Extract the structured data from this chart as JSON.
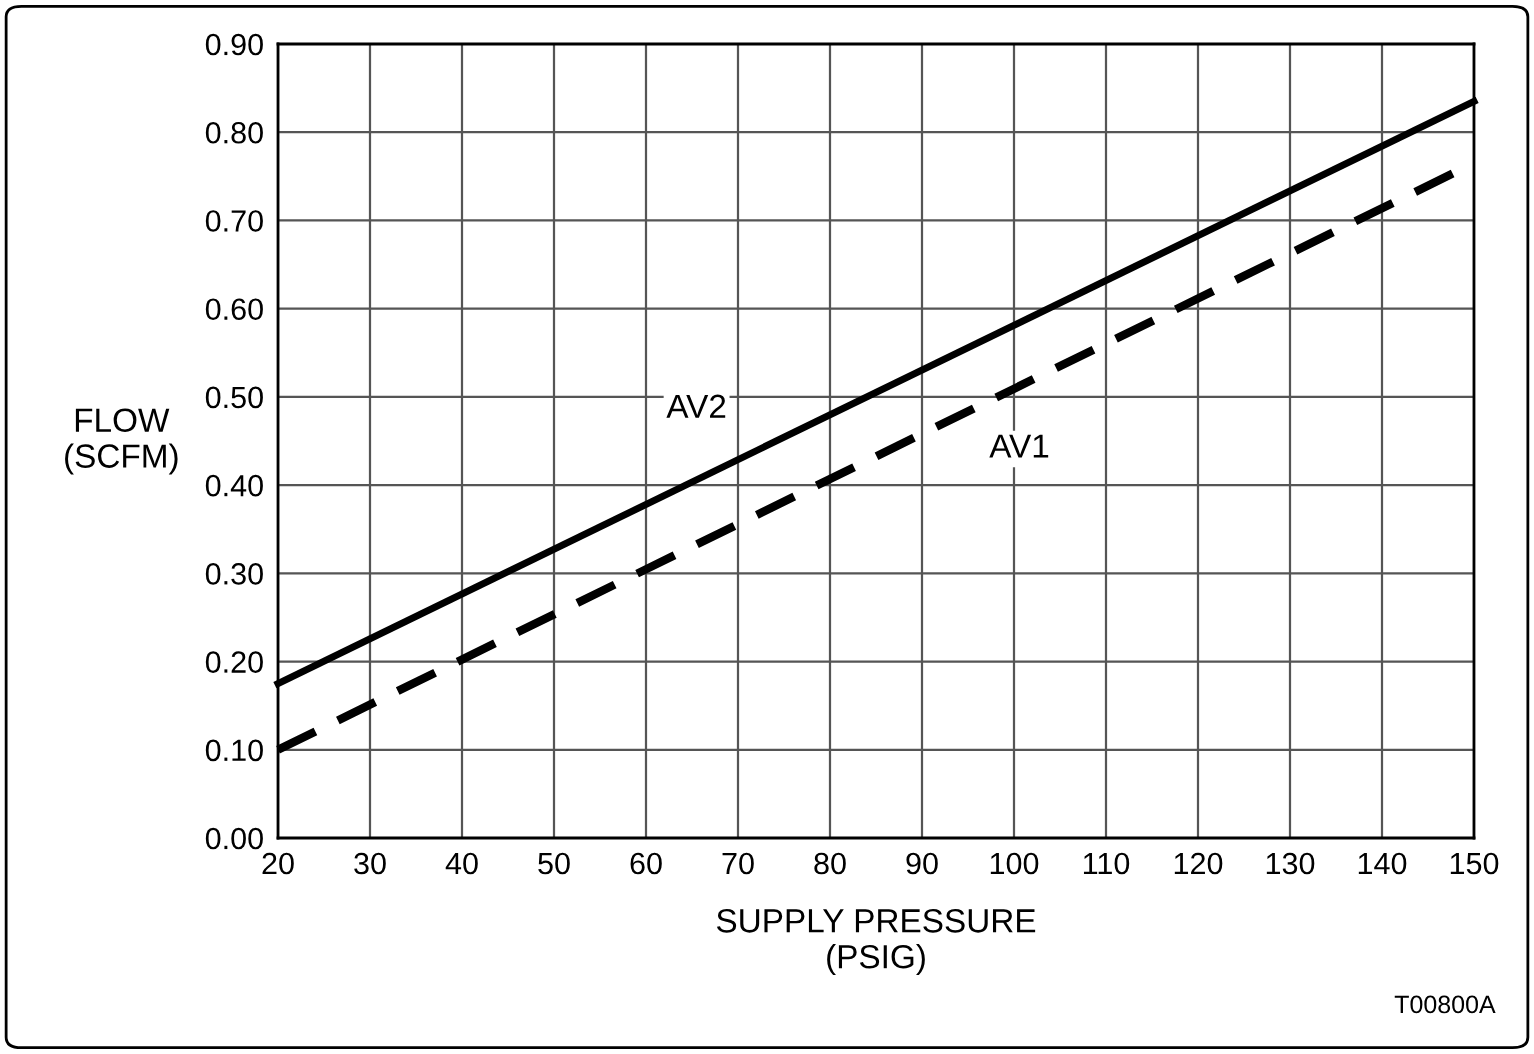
{
  "chart_data": {
    "type": "line",
    "xlabel": "SUPPLY PRESSURE\n(PSIG)",
    "ylabel": "FLOW\n(SCFM)",
    "series": [
      {
        "name": "AV2",
        "color": "#000000",
        "line_style": "solid",
        "values": [
          0.175,
          0.835
        ]
      },
      {
        "name": "AV1",
        "color": "#000000",
        "line_style": "dashed",
        "values": [
          0.1,
          0.765
        ]
      }
    ],
    "x": [
      20,
      150
    ],
    "xlim": [
      20,
      150
    ],
    "xticks": [
      20,
      30,
      40,
      50,
      60,
      70,
      80,
      90,
      100,
      110,
      120,
      130,
      140,
      150
    ],
    "ylim": [
      0,
      0.9
    ],
    "yticks": [
      {
        "value": 0,
        "label": "0.00"
      },
      {
        "value": 0.1,
        "label": "0.10"
      },
      {
        "value": 0.2,
        "label": "0.20"
      },
      {
        "value": 0.3,
        "label": "0.30"
      },
      {
        "value": 0.4,
        "label": "0.40"
      },
      {
        "value": 0.5,
        "label": "0.50"
      },
      {
        "value": 0.6,
        "label": "0.60"
      },
      {
        "value": 0.7,
        "label": "0.70"
      },
      {
        "value": 0.8,
        "label": "0.80"
      },
      {
        "value": 0.9,
        "label": "0.90"
      }
    ],
    "grid": true,
    "marker": "none",
    "annotations": [
      "T00800A"
    ]
  }
}
